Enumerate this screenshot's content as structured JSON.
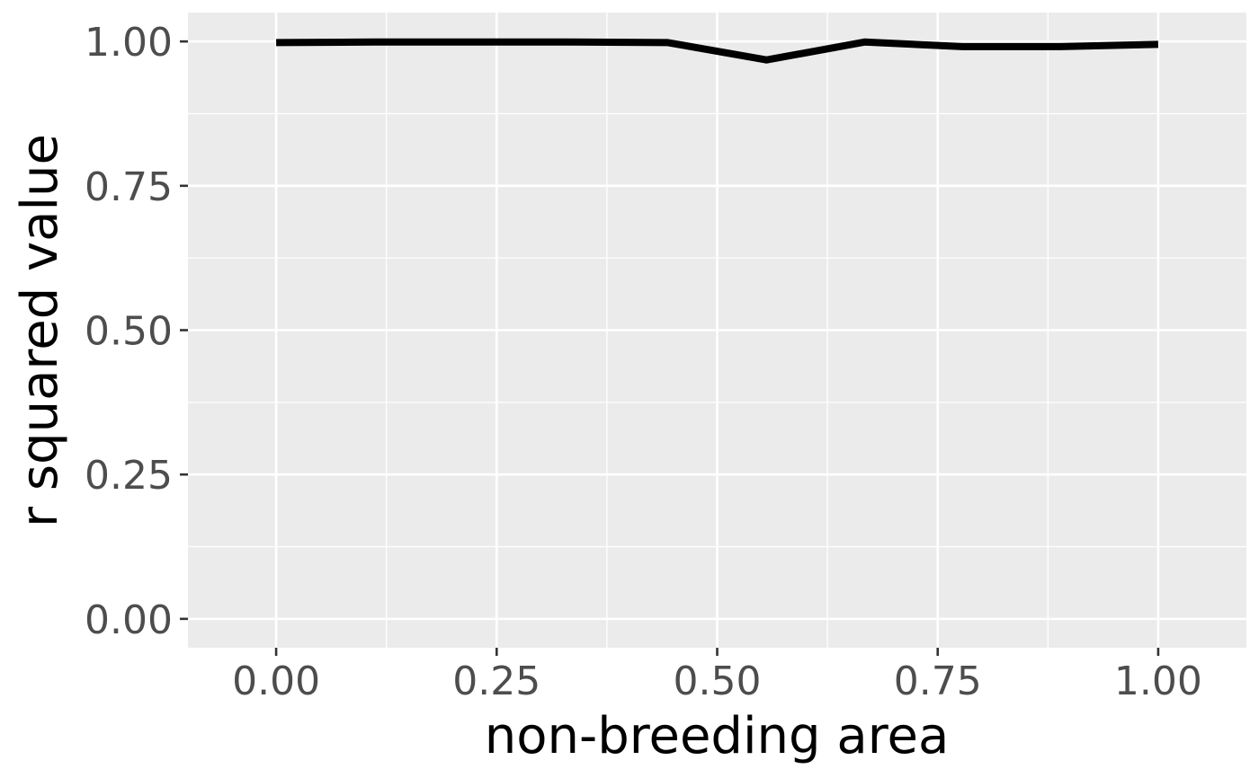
{
  "chart_data": {
    "type": "line",
    "title": "",
    "xlabel": "non-breeding area",
    "ylabel": "r squared value",
    "xlim": [
      -0.1,
      1.1
    ],
    "ylim": [
      -0.05,
      1.05
    ],
    "x_ticks": [
      0.0,
      0.25,
      0.5,
      0.75,
      1.0
    ],
    "x_tick_labels": [
      "0.00",
      "0.25",
      "0.50",
      "0.75",
      "1.00"
    ],
    "y_ticks": [
      0.0,
      0.25,
      0.5,
      0.75,
      1.0
    ],
    "y_tick_labels": [
      "0.00",
      "0.25",
      "0.50",
      "0.75",
      "1.00"
    ],
    "grid": true,
    "legend": "none",
    "panel_background": "#ebebeb",
    "grid_color": "#ffffff",
    "line_color": "#000000",
    "series": [
      {
        "x": [
          0.0,
          0.111,
          0.222,
          0.333,
          0.444,
          0.556,
          0.667,
          0.778,
          0.889,
          1.0
        ],
        "y": [
          0.998,
          0.999,
          0.999,
          0.999,
          0.998,
          0.968,
          0.999,
          0.991,
          0.991,
          0.995
        ]
      }
    ]
  }
}
